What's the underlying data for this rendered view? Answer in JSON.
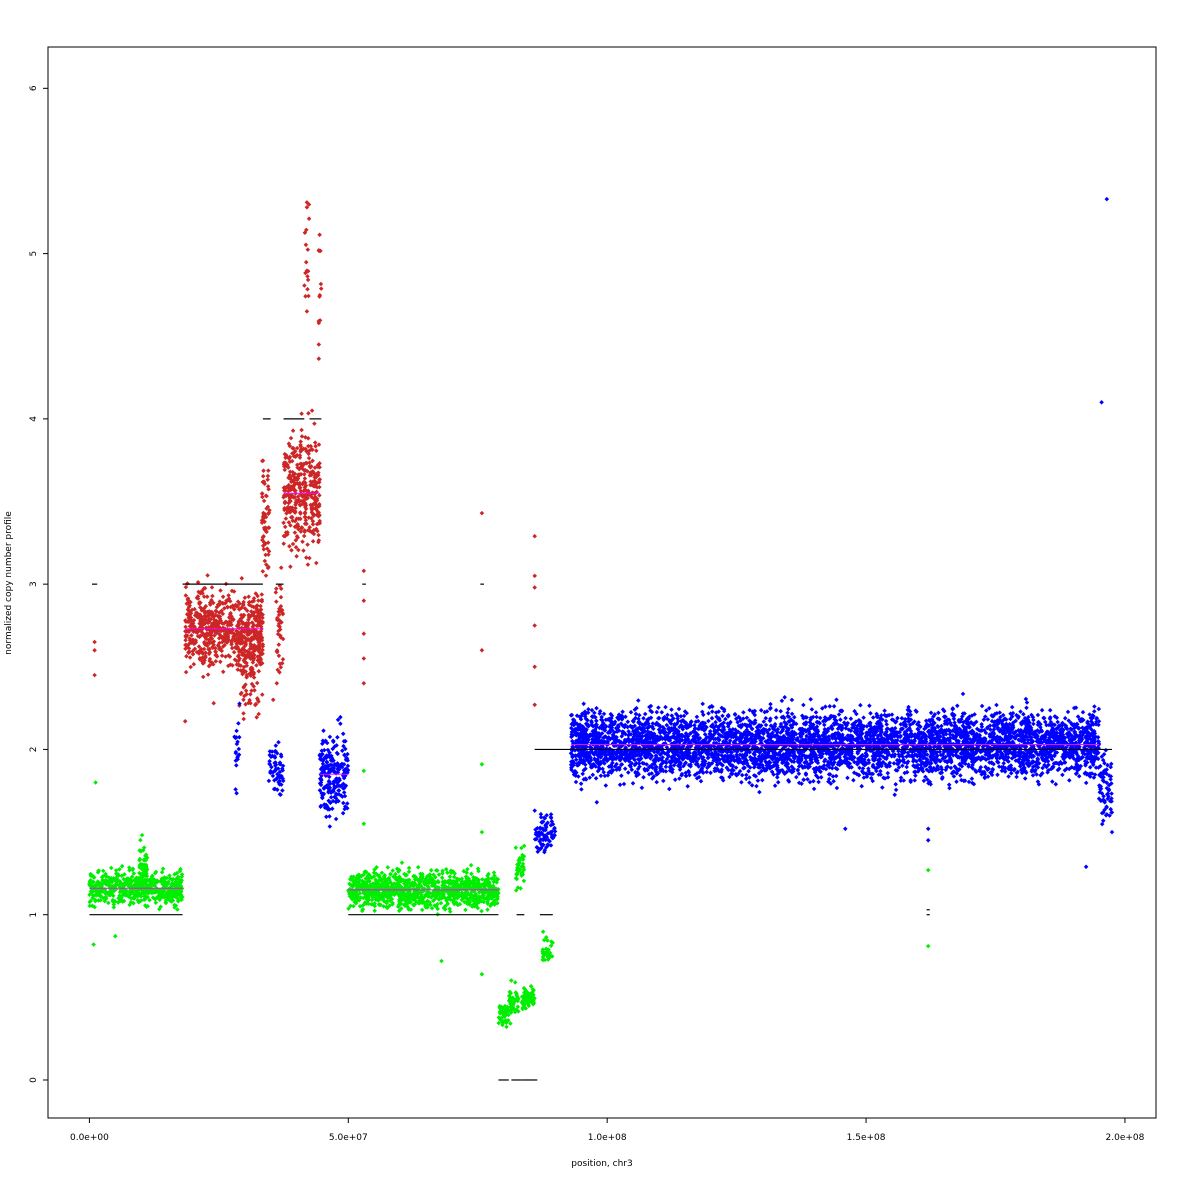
{
  "chart_data": {
    "type": "scatter",
    "title": "",
    "xlabel": "position, chr3",
    "ylabel": "normalized copy number profile",
    "xlim": [
      -8000000,
      206000000
    ],
    "ylim": [
      -0.23,
      6.25
    ],
    "x_ticks": [
      {
        "value": 0,
        "label": "0.0e+00"
      },
      {
        "value": 50000000,
        "label": "5.0e+07"
      },
      {
        "value": 100000000,
        "label": "1.0e+08"
      },
      {
        "value": 150000000,
        "label": "1.5e+08"
      },
      {
        "value": 200000000,
        "label": "2.0e+08"
      }
    ],
    "y_ticks": [
      {
        "value": 0,
        "label": "0"
      },
      {
        "value": 1,
        "label": "1"
      },
      {
        "value": 2,
        "label": "2"
      },
      {
        "value": 3,
        "label": "3"
      },
      {
        "value": 4,
        "label": "4"
      },
      {
        "value": 5,
        "label": "5"
      },
      {
        "value": 6,
        "label": "6"
      }
    ],
    "grid": false,
    "colors": {
      "loss": "#00ee00",
      "gain": "#cd2626",
      "neutral": "#0000ff",
      "median": "#ff00ff",
      "copy_number": "#000000"
    },
    "clusters": [
      {
        "x0": 0,
        "x1": 18000000,
        "y": 1.16,
        "spread": 0.05,
        "n": 550,
        "color": "loss"
      },
      {
        "x0": 9500000,
        "x1": 11200000,
        "y": 1.28,
        "spread": 0.08,
        "n": 60,
        "color": "loss"
      },
      {
        "x0": 18500000,
        "x1": 33500000,
        "y": 2.73,
        "spread": 0.11,
        "n": 650,
        "color": "gain"
      },
      {
        "x0": 28500000,
        "x1": 33500000,
        "y": 2.55,
        "spread": 0.15,
        "n": 120,
        "color": "gain"
      },
      {
        "x0": 33300000,
        "x1": 34800000,
        "y": 3.4,
        "spread": 0.18,
        "n": 60,
        "color": "gain"
      },
      {
        "x0": 36000000,
        "x1": 37500000,
        "y": 2.7,
        "spread": 0.2,
        "n": 40,
        "color": "gain"
      },
      {
        "x0": 37500000,
        "x1": 44500000,
        "y": 3.55,
        "spread": 0.17,
        "n": 380,
        "color": "gain"
      },
      {
        "x0": 41500000,
        "x1": 42500000,
        "y": 4.95,
        "spread": 0.2,
        "n": 16,
        "color": "gain"
      },
      {
        "x0": 44300000,
        "x1": 44800000,
        "y": 4.75,
        "spread": 0.2,
        "n": 10,
        "color": "gain"
      },
      {
        "x0": 28000000,
        "x1": 29000000,
        "y": 2.0,
        "spread": 0.12,
        "n": 20,
        "color": "neutral"
      },
      {
        "x0": 34500000,
        "x1": 37500000,
        "y": 1.88,
        "spread": 0.08,
        "n": 60,
        "color": "neutral"
      },
      {
        "x0": 44500000,
        "x1": 50000000,
        "y": 1.85,
        "spread": 0.12,
        "n": 220,
        "color": "neutral"
      },
      {
        "x0": 50000000,
        "x1": 79000000,
        "y": 1.15,
        "spread": 0.055,
        "n": 1050,
        "color": "loss"
      },
      {
        "x0": 79000000,
        "x1": 81000000,
        "y": 0.4,
        "spread": 0.04,
        "n": 40,
        "color": "loss"
      },
      {
        "x0": 81000000,
        "x1": 83000000,
        "y": 0.48,
        "spread": 0.05,
        "n": 40,
        "color": "loss"
      },
      {
        "x0": 82300000,
        "x1": 84000000,
        "y": 1.28,
        "spread": 0.06,
        "n": 40,
        "color": "loss"
      },
      {
        "x0": 83500000,
        "x1": 86000000,
        "y": 0.5,
        "spread": 0.03,
        "n": 60,
        "color": "loss"
      },
      {
        "x0": 87500000,
        "x1": 89500000,
        "y": 0.78,
        "spread": 0.04,
        "n": 30,
        "color": "loss"
      },
      {
        "x0": 86000000,
        "x1": 90000000,
        "y": 1.5,
        "spread": 0.06,
        "n": 80,
        "color": "neutral"
      },
      {
        "x0": 93000000,
        "x1": 195000000,
        "y": 2.03,
        "spread": 0.1,
        "n": 4800,
        "color": "neutral"
      },
      {
        "x0": 195000000,
        "x1": 197500000,
        "y": 1.75,
        "spread": 0.1,
        "n": 70,
        "color": "neutral"
      }
    ],
    "outliers": [
      {
        "x": 800000,
        "y": 0.82,
        "color": "loss"
      },
      {
        "x": 1200000,
        "y": 1.8,
        "color": "loss"
      },
      {
        "x": 5000000,
        "y": 0.87,
        "color": "loss"
      },
      {
        "x": 1000000,
        "y": 2.65,
        "color": "gain"
      },
      {
        "x": 1000000,
        "y": 2.6,
        "color": "gain"
      },
      {
        "x": 1000000,
        "y": 2.45,
        "color": "gain"
      },
      {
        "x": 18500000,
        "y": 2.17,
        "color": "gain"
      },
      {
        "x": 24000000,
        "y": 2.28,
        "color": "gain"
      },
      {
        "x": 35500000,
        "y": 2.3,
        "color": "gain"
      },
      {
        "x": 36000000,
        "y": 2.95,
        "color": "gain"
      },
      {
        "x": 42000000,
        "y": 5.31,
        "color": "gain"
      },
      {
        "x": 42000000,
        "y": 5.28,
        "color": "gain"
      },
      {
        "x": 42000000,
        "y": 4.65,
        "color": "gain"
      },
      {
        "x": 44300000,
        "y": 5.02,
        "color": "gain"
      },
      {
        "x": 44300000,
        "y": 4.45,
        "color": "gain"
      },
      {
        "x": 44300000,
        "y": 4.58,
        "color": "gain"
      },
      {
        "x": 43000000,
        "y": 4.05,
        "color": "gain"
      },
      {
        "x": 53000000,
        "y": 3.08,
        "color": "gain"
      },
      {
        "x": 53000000,
        "y": 2.9,
        "color": "gain"
      },
      {
        "x": 53000000,
        "y": 2.7,
        "color": "gain"
      },
      {
        "x": 53000000,
        "y": 2.55,
        "color": "gain"
      },
      {
        "x": 53000000,
        "y": 2.4,
        "color": "gain"
      },
      {
        "x": 53000000,
        "y": 1.87,
        "color": "loss"
      },
      {
        "x": 53000000,
        "y": 1.55,
        "color": "loss"
      },
      {
        "x": 68000000,
        "y": 0.72,
        "color": "loss"
      },
      {
        "x": 75800000,
        "y": 3.43,
        "color": "gain"
      },
      {
        "x": 75800000,
        "y": 2.6,
        "color": "gain"
      },
      {
        "x": 75800000,
        "y": 1.91,
        "color": "loss"
      },
      {
        "x": 75800000,
        "y": 1.5,
        "color": "loss"
      },
      {
        "x": 75800000,
        "y": 0.64,
        "color": "loss"
      },
      {
        "x": 86000000,
        "y": 3.29,
        "color": "gain"
      },
      {
        "x": 86000000,
        "y": 3.05,
        "color": "gain"
      },
      {
        "x": 86000000,
        "y": 2.98,
        "color": "gain"
      },
      {
        "x": 86000000,
        "y": 2.75,
        "color": "gain"
      },
      {
        "x": 86000000,
        "y": 2.5,
        "color": "gain"
      },
      {
        "x": 86000000,
        "y": 2.27,
        "color": "gain"
      },
      {
        "x": 86000000,
        "y": 1.63,
        "color": "neutral"
      },
      {
        "x": 98000000,
        "y": 1.68,
        "color": "neutral"
      },
      {
        "x": 146000000,
        "y": 1.52,
        "color": "neutral"
      },
      {
        "x": 162000000,
        "y": 1.52,
        "color": "neutral"
      },
      {
        "x": 162000000,
        "y": 1.45,
        "color": "neutral"
      },
      {
        "x": 162000000,
        "y": 1.27,
        "color": "loss"
      },
      {
        "x": 162000000,
        "y": 0.81,
        "color": "loss"
      },
      {
        "x": 192500000,
        "y": 1.29,
        "color": "neutral"
      },
      {
        "x": 195500000,
        "y": 4.1,
        "color": "neutral"
      },
      {
        "x": 196500000,
        "y": 5.33,
        "color": "neutral"
      },
      {
        "x": 197500000,
        "y": 1.5,
        "color": "neutral"
      }
    ],
    "copy_number_segments": [
      {
        "x0": 0,
        "x1": 18000000,
        "y": 1
      },
      {
        "x0": 500000,
        "x1": 1500000,
        "y": 3
      },
      {
        "x0": 18000000,
        "x1": 33500000,
        "y": 3
      },
      {
        "x0": 33500000,
        "x1": 35000000,
        "y": 4
      },
      {
        "x0": 36000000,
        "x1": 37500000,
        "y": 3
      },
      {
        "x0": 37500000,
        "x1": 41500000,
        "y": 4
      },
      {
        "x0": 42500000,
        "x1": 44800000,
        "y": 4
      },
      {
        "x0": 52700000,
        "x1": 53400000,
        "y": 3
      },
      {
        "x0": 50000000,
        "x1": 79000000,
        "y": 1
      },
      {
        "x0": 75500000,
        "x1": 76200000,
        "y": 3
      },
      {
        "x0": 79000000,
        "x1": 81000000,
        "y": 0
      },
      {
        "x0": 81500000,
        "x1": 83500000,
        "y": 0
      },
      {
        "x0": 83500000,
        "x1": 86500000,
        "y": 0
      },
      {
        "x0": 82500000,
        "x1": 84000000,
        "y": 1
      },
      {
        "x0": 87000000,
        "x1": 89500000,
        "y": 1
      },
      {
        "x0": 86000000,
        "x1": 197500000,
        "y": 2
      },
      {
        "x0": 161700000,
        "x1": 162300000,
        "y": 1.03
      },
      {
        "x0": 161700000,
        "x1": 162300000,
        "y": 1
      }
    ],
    "median_segments": [
      {
        "x0": 0,
        "x1": 18000000,
        "y": 1.16
      },
      {
        "x0": 18500000,
        "x1": 33500000,
        "y": 2.73
      },
      {
        "x0": 37500000,
        "x1": 44500000,
        "y": 3.55
      },
      {
        "x0": 44500000,
        "x1": 50000000,
        "y": 1.85
      },
      {
        "x0": 50000000,
        "x1": 79000000,
        "y": 1.15
      },
      {
        "x0": 93000000,
        "x1": 195000000,
        "y": 2.03
      }
    ]
  }
}
